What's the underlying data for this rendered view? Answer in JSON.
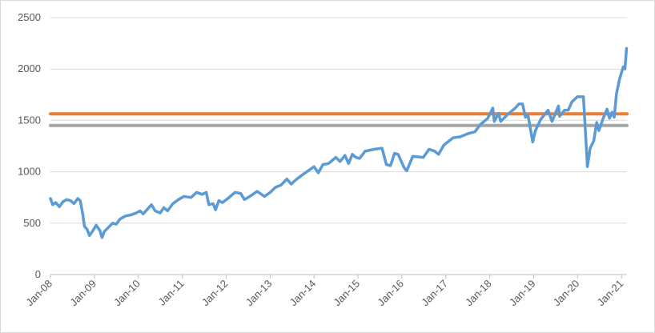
{
  "chart_data": {
    "type": "line",
    "title": "",
    "xlabel": "",
    "ylabel": "",
    "ylim": [
      0,
      2500
    ],
    "yticks": [
      0,
      500,
      1000,
      1500,
      2000,
      2500
    ],
    "xlim": [
      "2008-01-01",
      "2021-02-15"
    ],
    "xtick_labels": [
      "Jan-08",
      "Jan-09",
      "Jan-10",
      "Jan-11",
      "Jan-12",
      "Jan-13",
      "Jan-14",
      "Jan-15",
      "Jan-16",
      "Jan-17",
      "Jan-18",
      "Jan-19",
      "Jan-20",
      "Jan-21"
    ],
    "grid": true,
    "legend": "none",
    "series": [
      {
        "color": "#5b9bd5",
        "points": [
          [
            "2008-01-01",
            740
          ],
          [
            "2008-01-20",
            680
          ],
          [
            "2008-02-15",
            700
          ],
          [
            "2008-03-15",
            660
          ],
          [
            "2008-04-15",
            710
          ],
          [
            "2008-05-15",
            730
          ],
          [
            "2008-06-15",
            720
          ],
          [
            "2008-07-15",
            690
          ],
          [
            "2008-08-15",
            740
          ],
          [
            "2008-09-05",
            720
          ],
          [
            "2008-09-25",
            590
          ],
          [
            "2008-10-10",
            470
          ],
          [
            "2008-11-01",
            440
          ],
          [
            "2008-11-20",
            380
          ],
          [
            "2008-12-15",
            420
          ],
          [
            "2009-01-15",
            480
          ],
          [
            "2009-02-15",
            430
          ],
          [
            "2009-03-05",
            360
          ],
          [
            "2009-03-25",
            420
          ],
          [
            "2009-04-20",
            450
          ],
          [
            "2009-06-01",
            500
          ],
          [
            "2009-07-01",
            490
          ],
          [
            "2009-08-01",
            540
          ],
          [
            "2009-09-15",
            570
          ],
          [
            "2009-11-01",
            580
          ],
          [
            "2009-12-15",
            600
          ],
          [
            "2010-01-15",
            620
          ],
          [
            "2010-02-10",
            590
          ],
          [
            "2010-04-20",
            680
          ],
          [
            "2010-05-20",
            620
          ],
          [
            "2010-07-01",
            600
          ],
          [
            "2010-08-01",
            650
          ],
          [
            "2010-09-01",
            620
          ],
          [
            "2010-10-15",
            690
          ],
          [
            "2010-12-01",
            730
          ],
          [
            "2011-01-15",
            760
          ],
          [
            "2011-03-15",
            750
          ],
          [
            "2011-05-01",
            800
          ],
          [
            "2011-06-15",
            780
          ],
          [
            "2011-07-20",
            800
          ],
          [
            "2011-08-10",
            680
          ],
          [
            "2011-09-15",
            690
          ],
          [
            "2011-10-05",
            630
          ],
          [
            "2011-11-01",
            720
          ],
          [
            "2011-12-01",
            700
          ],
          [
            "2012-01-15",
            740
          ],
          [
            "2012-03-15",
            800
          ],
          [
            "2012-05-01",
            790
          ],
          [
            "2012-06-01",
            730
          ],
          [
            "2012-07-15",
            760
          ],
          [
            "2012-09-15",
            810
          ],
          [
            "2012-11-15",
            760
          ],
          [
            "2013-01-01",
            800
          ],
          [
            "2013-02-15",
            850
          ],
          [
            "2013-04-01",
            870
          ],
          [
            "2013-05-20",
            930
          ],
          [
            "2013-06-25",
            880
          ],
          [
            "2013-08-01",
            920
          ],
          [
            "2013-09-15",
            960
          ],
          [
            "2013-11-01",
            1000
          ],
          [
            "2014-01-01",
            1050
          ],
          [
            "2014-02-05",
            990
          ],
          [
            "2014-03-15",
            1070
          ],
          [
            "2014-05-01",
            1080
          ],
          [
            "2014-07-01",
            1140
          ],
          [
            "2014-08-05",
            1100
          ],
          [
            "2014-09-15",
            1160
          ],
          [
            "2014-10-15",
            1080
          ],
          [
            "2014-11-15",
            1170
          ],
          [
            "2014-12-15",
            1140
          ],
          [
            "2015-01-15",
            1130
          ],
          [
            "2015-03-01",
            1200
          ],
          [
            "2015-05-20",
            1220
          ],
          [
            "2015-07-20",
            1230
          ],
          [
            "2015-08-25",
            1070
          ],
          [
            "2015-09-29",
            1060
          ],
          [
            "2015-11-01",
            1180
          ],
          [
            "2015-12-01",
            1170
          ],
          [
            "2016-01-20",
            1040
          ],
          [
            "2016-02-11",
            1010
          ],
          [
            "2016-04-01",
            1150
          ],
          [
            "2016-06-27",
            1140
          ],
          [
            "2016-08-15",
            1220
          ],
          [
            "2016-10-01",
            1200
          ],
          [
            "2016-11-01",
            1170
          ],
          [
            "2016-12-15",
            1260
          ],
          [
            "2017-03-01",
            1330
          ],
          [
            "2017-05-01",
            1340
          ],
          [
            "2017-07-01",
            1370
          ],
          [
            "2017-09-01",
            1390
          ],
          [
            "2017-10-15",
            1460
          ],
          [
            "2017-12-15",
            1520
          ],
          [
            "2018-01-26",
            1620
          ],
          [
            "2018-02-08",
            1490
          ],
          [
            "2018-03-15",
            1570
          ],
          [
            "2018-04-02",
            1490
          ],
          [
            "2018-06-01",
            1560
          ],
          [
            "2018-08-01",
            1620
          ],
          [
            "2018-08-31",
            1660
          ],
          [
            "2018-10-01",
            1660
          ],
          [
            "2018-10-25",
            1530
          ],
          [
            "2018-11-15",
            1550
          ],
          [
            "2018-12-24",
            1290
          ],
          [
            "2019-01-15",
            1400
          ],
          [
            "2019-03-01",
            1510
          ],
          [
            "2019-05-01",
            1600
          ],
          [
            "2019-06-03",
            1490
          ],
          [
            "2019-07-26",
            1640
          ],
          [
            "2019-08-05",
            1540
          ],
          [
            "2019-09-15",
            1600
          ],
          [
            "2019-10-15",
            1600
          ],
          [
            "2019-11-15",
            1680
          ],
          [
            "2019-12-31",
            1730
          ],
          [
            "2020-02-19",
            1730
          ],
          [
            "2020-03-01",
            1500
          ],
          [
            "2020-03-23",
            1050
          ],
          [
            "2020-04-15",
            1230
          ],
          [
            "2020-05-15",
            1300
          ],
          [
            "2020-06-08",
            1480
          ],
          [
            "2020-06-26",
            1400
          ],
          [
            "2020-08-01",
            1520
          ],
          [
            "2020-09-02",
            1610
          ],
          [
            "2020-09-23",
            1520
          ],
          [
            "2020-10-15",
            1580
          ],
          [
            "2020-11-01",
            1530
          ],
          [
            "2020-11-20",
            1760
          ],
          [
            "2020-12-15",
            1900
          ],
          [
            "2021-01-15",
            2020
          ],
          [
            "2021-01-29",
            2000
          ],
          [
            "2021-02-12",
            2200
          ]
        ]
      },
      {
        "color": "#ed7d31",
        "points": [
          [
            "2008-01-01",
            1563
          ],
          [
            "2021-02-15",
            1563
          ]
        ]
      },
      {
        "color": "#a5a5a5",
        "points": [
          [
            "2008-01-01",
            1451
          ],
          [
            "2021-02-15",
            1451
          ]
        ]
      }
    ]
  }
}
